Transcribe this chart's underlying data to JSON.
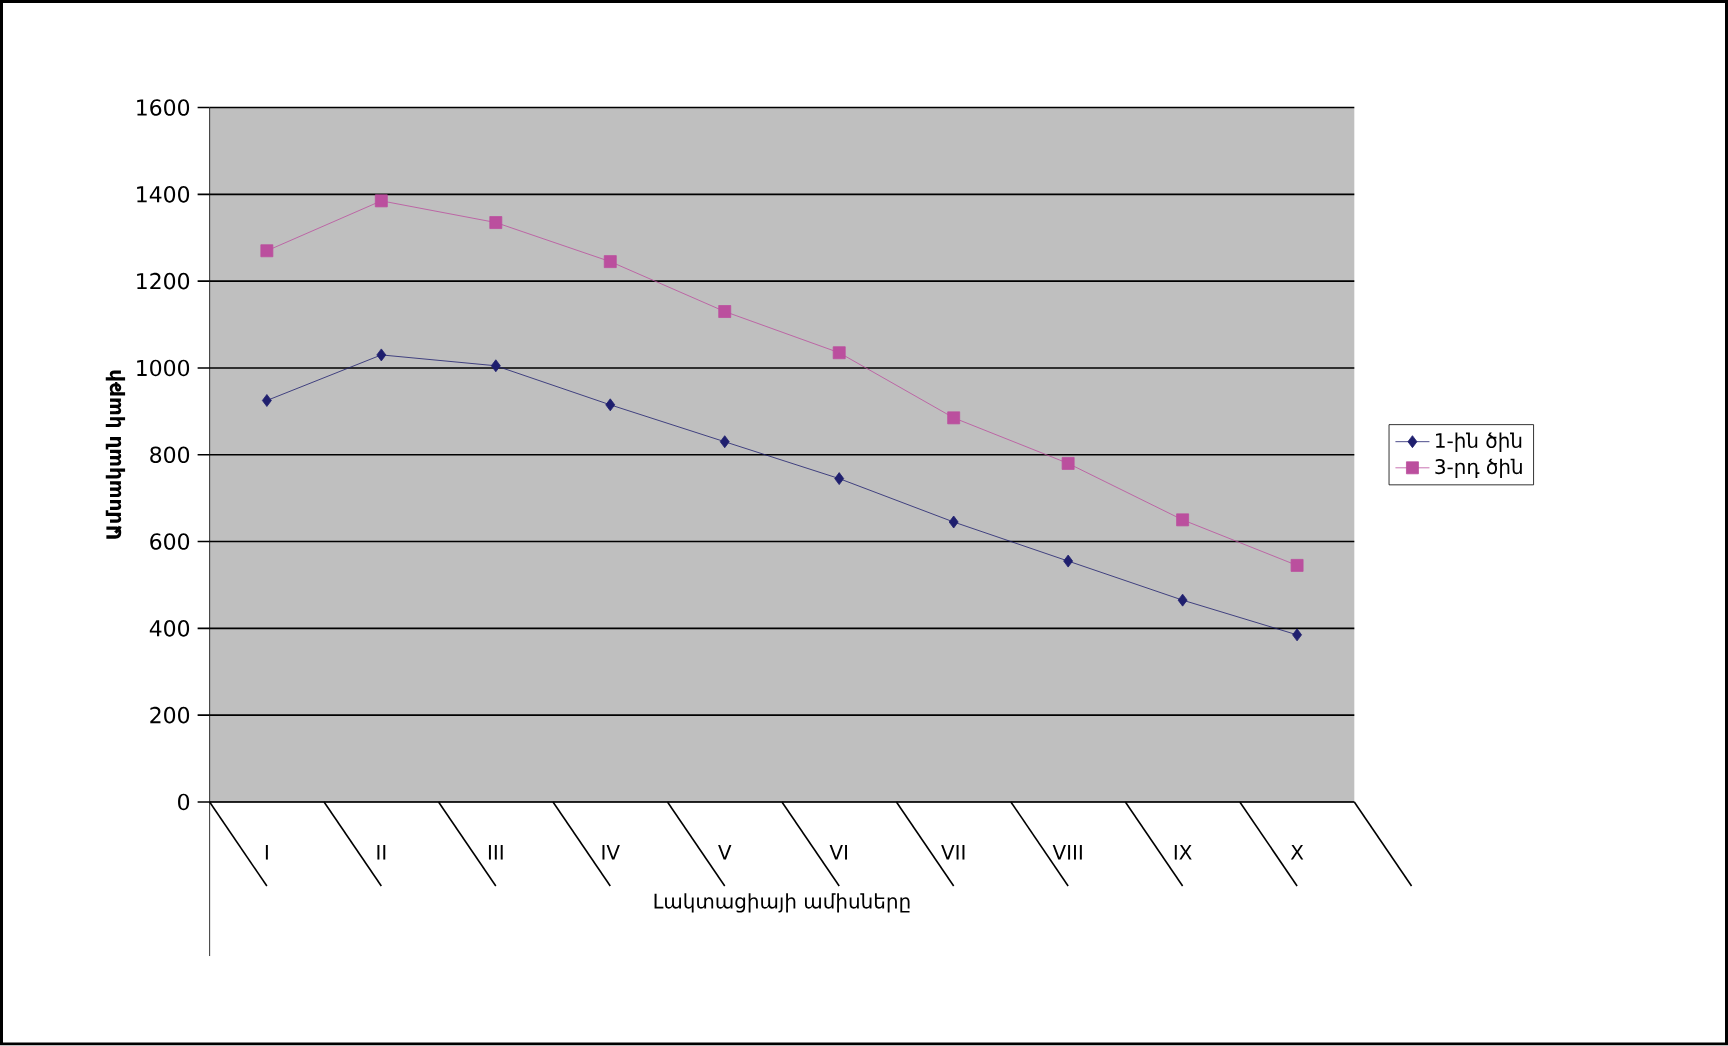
{
  "chart_data": {
    "type": "line",
    "xlabel": "Լակտացիայի   ամիսները",
    "ylabel": "Ամսական կաթի",
    "categories": [
      "I",
      "II",
      "III",
      "IV",
      "V",
      "VI",
      "VII",
      "VIII",
      "IX",
      "X"
    ],
    "series": [
      {
        "name": "1-ին ծին",
        "color": "#1f1f6e",
        "marker": "diamond",
        "values": [
          925,
          1030,
          1005,
          915,
          830,
          745,
          645,
          555,
          465,
          385
        ]
      },
      {
        "name": "3-րդ ծին",
        "color": "#bb4f9e",
        "marker": "square",
        "values": [
          1270,
          1385,
          1335,
          1245,
          1130,
          1035,
          885,
          780,
          650,
          545
        ]
      }
    ],
    "ylim": [
      0,
      1600
    ],
    "yticks": [
      0,
      200,
      400,
      600,
      800,
      1000,
      1200,
      1400,
      1600
    ],
    "grid": "y",
    "legend": "right",
    "line_style": "solid"
  }
}
